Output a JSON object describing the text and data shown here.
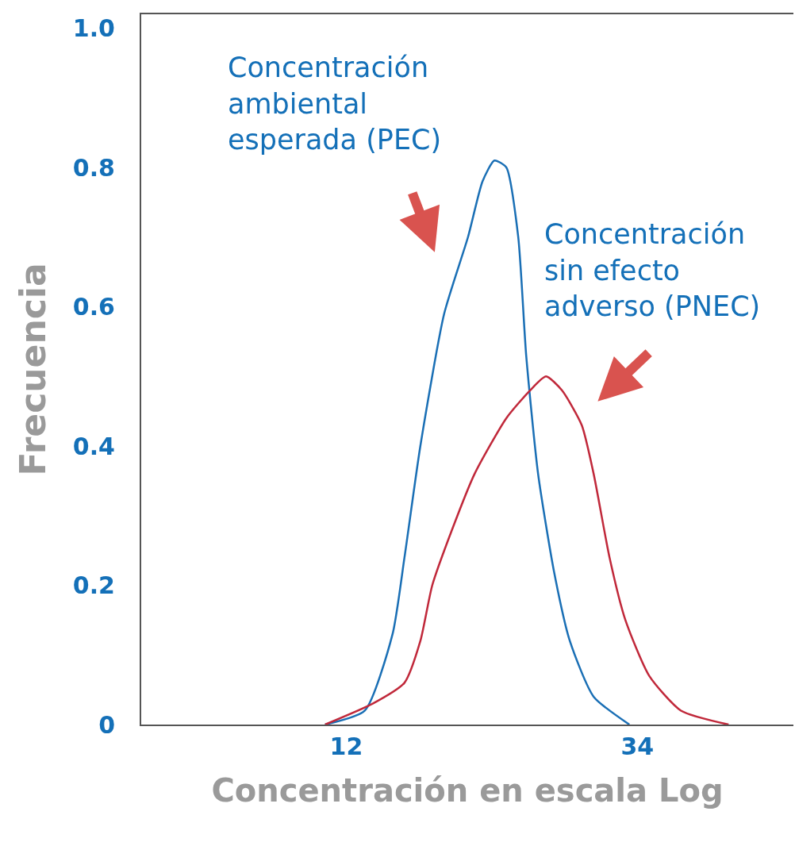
{
  "chart_data": {
    "type": "line",
    "xlabel": "Concentración en escala Log",
    "ylabel": "Frecuencia",
    "xlim": [
      -3.5,
      45.8
    ],
    "xticks": [
      12,
      34
    ],
    "ylim": [
      0,
      1.02
    ],
    "yticks": [
      0,
      0.2,
      0.4,
      0.6,
      0.8,
      {
        "value": 1,
        "label": "1.0"
      }
    ],
    "marker": "none",
    "line_style": "solid",
    "series": [
      {
        "color": "#1a6fb5",
        "x": [
          10.4,
          13.4,
          15.5,
          16.4,
          17.6,
          19.4,
          21.2,
          22.3,
          23.2,
          24.1,
          25.0,
          25.6,
          26.5,
          27.7,
          28.9,
          30.7,
          33.4
        ],
        "values": [
          0,
          0.02,
          0.13,
          0.24,
          0.4,
          0.59,
          0.7,
          0.78,
          0.81,
          0.8,
          0.7,
          0.53,
          0.36,
          0.22,
          0.12,
          0.04,
          0
        ]
      },
      {
        "color": "#c0283a",
        "x": [
          10.4,
          14.0,
          16.4,
          17.6,
          18.5,
          20.0,
          21.7,
          24.1,
          25.9,
          27.1,
          28.3,
          29.8,
          30.7,
          31.9,
          33.1,
          34.9,
          37.3,
          40.9
        ],
        "values": [
          0,
          0.03,
          0.06,
          0.12,
          0.2,
          0.28,
          0.36,
          0.44,
          0.48,
          0.5,
          0.48,
          0.43,
          0.36,
          0.24,
          0.15,
          0.07,
          0.02,
          0
        ]
      }
    ],
    "annotations": [
      "Concentración\nambiental\nesperada (PEC)",
      "Concentración\nsin efecto\nadverso (PNEC)"
    ]
  }
}
